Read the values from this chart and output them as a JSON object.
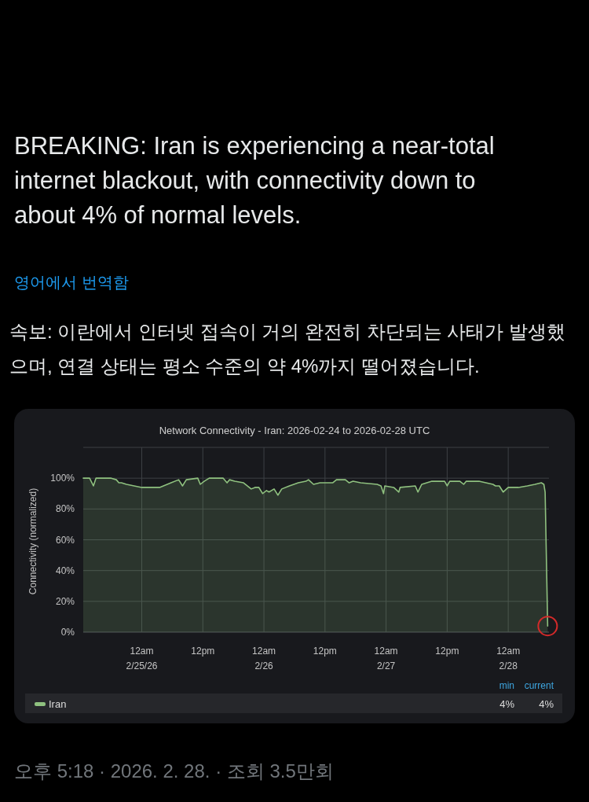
{
  "chart_data": {
    "type": "area",
    "title": "Network Connectivity - Iran: 2026-02-24 to 2026-02-28 UTC",
    "ylabel": "Connectivity (normalized)",
    "annotations": [
      "BREAKING: Iran is experiencing a near-total internet blackout, with connectivity down to about 4% of normal levels.",
      "영어에서 번역함",
      "속보: 이란에서 인터넷 접속이 거의 완전히 차단되는 사태가 발생했으며, 연결 상태는 평소 수준의 약 4%까지 떨어졌습니다.",
      "min",
      "current",
      "4%",
      "4%",
      "오후 5:18 · 2026. 2. 28. · 조회 3.5만회"
    ],
    "x": [
      "2026-02-24T12:30",
      "2026-02-24T13:45",
      "2026-02-24T14:30",
      "2026-02-24T15:00",
      "2026-02-24T18:00",
      "2026-02-24T19:00",
      "2026-02-24T19:30",
      "2026-02-24T20:00",
      "2026-02-24T21:00",
      "2026-02-24T22:30",
      "2026-02-25T00:00",
      "2026-02-25T01:30",
      "2026-02-25T03:30",
      "2026-02-25T04:15",
      "2026-02-25T05:45",
      "2026-02-25T07:15",
      "2026-02-25T08:00",
      "2026-02-25T08:45",
      "2026-02-25T11:00",
      "2026-02-25T11:30",
      "2026-02-25T12:15",
      "2026-02-25T13:15",
      "2026-02-25T16:00",
      "2026-02-25T16:45",
      "2026-02-25T17:15",
      "2026-02-25T18:15",
      "2026-02-25T20:00",
      "2026-02-25T21:30",
      "2026-02-25T22:15",
      "2026-02-25T23:00",
      "2026-02-25T23:45",
      "2026-02-26T00:30",
      "2026-02-26T01:00",
      "2026-02-26T02:00",
      "2026-02-26T02:45",
      "2026-02-26T03:30",
      "2026-02-26T05:00",
      "2026-02-26T06:45",
      "2026-02-26T08:15",
      "2026-02-26T08:45",
      "2026-02-26T09:45",
      "2026-02-26T11:00",
      "2026-02-26T13:30",
      "2026-02-26T14:15",
      "2026-02-26T16:00",
      "2026-02-26T16:45",
      "2026-02-26T17:30",
      "2026-02-26T19:00",
      "2026-02-26T22:15",
      "2026-02-26T23:00",
      "2026-02-26T23:30",
      "2026-02-26T23:45",
      "2026-02-27T01:30",
      "2026-02-27T02:30",
      "2026-02-27T02:45",
      "2026-02-27T05:45",
      "2026-02-27T06:15",
      "2026-02-27T07:00",
      "2026-02-27T09:00",
      "2026-02-27T11:30",
      "2026-02-27T12:00",
      "2026-02-27T12:30",
      "2026-02-27T14:30",
      "2026-02-27T15:15",
      "2026-02-27T15:45",
      "2026-02-27T18:15",
      "2026-02-27T21:00",
      "2026-02-27T21:30",
      "2026-02-27T22:15",
      "2026-02-27T23:00",
      "2026-02-28T00:00",
      "2026-02-28T02:00",
      "2026-02-28T03:45",
      "2026-02-28T05:15",
      "2026-02-28T06:30",
      "2026-02-28T07:00",
      "2026-02-28T07:15",
      "2026-02-28T07:45"
    ],
    "series": [
      {
        "name": "Iran",
        "color": "#8fc17f",
        "values": [
          100,
          100,
          95,
          100,
          100,
          99,
          97,
          97,
          96,
          95,
          94,
          94,
          94,
          95,
          97,
          99,
          95,
          99,
          100,
          96,
          98,
          100,
          100,
          97,
          99,
          98,
          97,
          93,
          94,
          94,
          90,
          92,
          91,
          93,
          89,
          93,
          95,
          97,
          98,
          99,
          96,
          97,
          97,
          99,
          99,
          97,
          98,
          97,
          96,
          95,
          90,
          95,
          94,
          91,
          94,
          95,
          91,
          96,
          98,
          98,
          95,
          98,
          98,
          96,
          98,
          98,
          96,
          95,
          95,
          91,
          94,
          94,
          95,
          96,
          97,
          96,
          91,
          4
        ]
      }
    ],
    "xlim": [
      "2026-02-24T12:30",
      "2026-02-28T08:00"
    ],
    "xticks": [
      {
        "value": "2026-02-25T00:00",
        "label": "12am\n2/25/26"
      },
      {
        "value": "2026-02-25T12:00",
        "label": "12pm"
      },
      {
        "value": "2026-02-26T00:00",
        "label": "12am\n2/26"
      },
      {
        "value": "2026-02-26T12:00",
        "label": "12pm"
      },
      {
        "value": "2026-02-27T00:00",
        "label": "12am\n2/27"
      },
      {
        "value": "2026-02-27T12:00",
        "label": "12pm"
      },
      {
        "value": "2026-02-28T00:00",
        "label": "12am\n2/28"
      }
    ],
    "ylim": [
      0,
      120
    ],
    "yticks": [
      {
        "value": 0,
        "label": "0%"
      },
      {
        "value": 20,
        "label": "20%"
      },
      {
        "value": 40,
        "label": "40%"
      },
      {
        "value": 60,
        "label": "60%"
      },
      {
        "value": 80,
        "label": "80%"
      },
      {
        "value": 100,
        "label": "100%"
      },
      {
        "value": 120,
        "label": null
      }
    ],
    "grid": true,
    "legend": "bottom"
  }
}
